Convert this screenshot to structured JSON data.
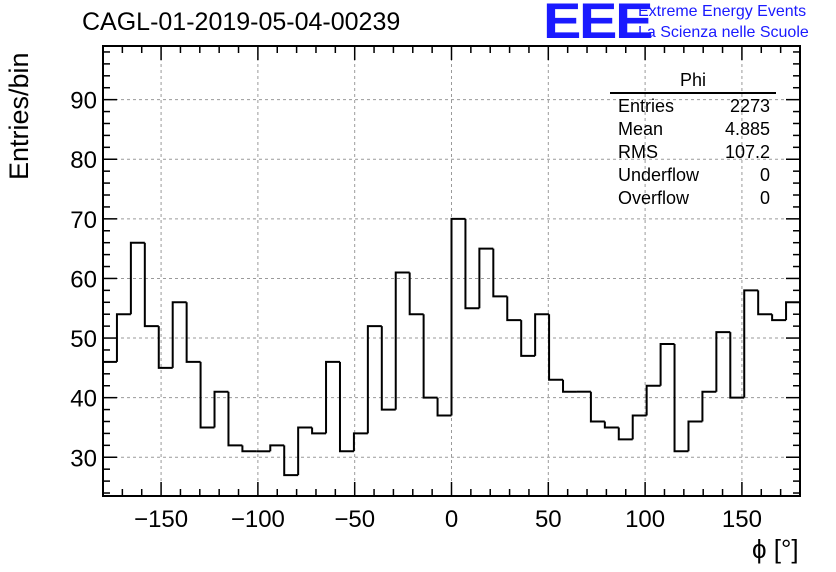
{
  "title": "CAGL-01-2019-05-04-00239",
  "logo": {
    "mark": "EEE",
    "line1": "Extreme Energy Events",
    "line2": "La Scienza nelle Scuole",
    "color": "#1a1aff"
  },
  "stats": {
    "title": "Phi",
    "rows": [
      {
        "label": "Entries",
        "value": "2273"
      },
      {
        "label": "Mean",
        "value": "4.885"
      },
      {
        "label": "RMS",
        "value": "107.2"
      },
      {
        "label": "Underflow",
        "value": "0"
      },
      {
        "label": "Overflow",
        "value": "0"
      }
    ]
  },
  "chart_data": {
    "type": "histogram",
    "xlabel": "ϕ [°]",
    "ylabel": "Entries/bin",
    "xlim": [
      -180,
      180
    ],
    "ylim": [
      23.5,
      99
    ],
    "bin_width": 7.2,
    "bin_low_edges": [
      -180,
      -172.8,
      -165.6,
      -158.4,
      -151.2,
      -144,
      -136.8,
      -129.6,
      -122.4,
      -115.2,
      -108,
      -100.8,
      -93.6,
      -86.4,
      -79.2,
      -72,
      -64.8,
      -57.6,
      -50.4,
      -43.2,
      -36,
      -28.8,
      -21.6,
      -14.4,
      -7.2,
      0,
      7.2,
      14.4,
      21.6,
      28.8,
      36,
      43.2,
      50.4,
      57.6,
      64.8,
      72,
      79.2,
      86.4,
      93.6,
      100.8,
      108,
      115.2,
      122.4,
      129.6,
      136.8,
      144,
      151.2,
      158.4,
      165.6,
      172.8
    ],
    "values": [
      46,
      54,
      66,
      52,
      45,
      56,
      46,
      35,
      41,
      32,
      31,
      31,
      32,
      27,
      35,
      34,
      46,
      31,
      34,
      52,
      38,
      61,
      54,
      40,
      37,
      70,
      55,
      65,
      57,
      53,
      47,
      54,
      43,
      41,
      41,
      36,
      35,
      33,
      37,
      42,
      49,
      31,
      36,
      41,
      51,
      40,
      58,
      54,
      53,
      56
    ],
    "x_ticks": [
      -150,
      -100,
      -50,
      0,
      50,
      100,
      150
    ],
    "x_tick_labels": [
      "−150",
      "−100",
      "−50",
      "0",
      "50",
      "100",
      "150"
    ],
    "y_ticks": [
      30,
      40,
      50,
      60,
      70,
      80,
      90
    ],
    "y_tick_labels": [
      "30",
      "40",
      "50",
      "60",
      "70",
      "80",
      "90"
    ],
    "grid": true,
    "legend": "top-right stats box"
  }
}
